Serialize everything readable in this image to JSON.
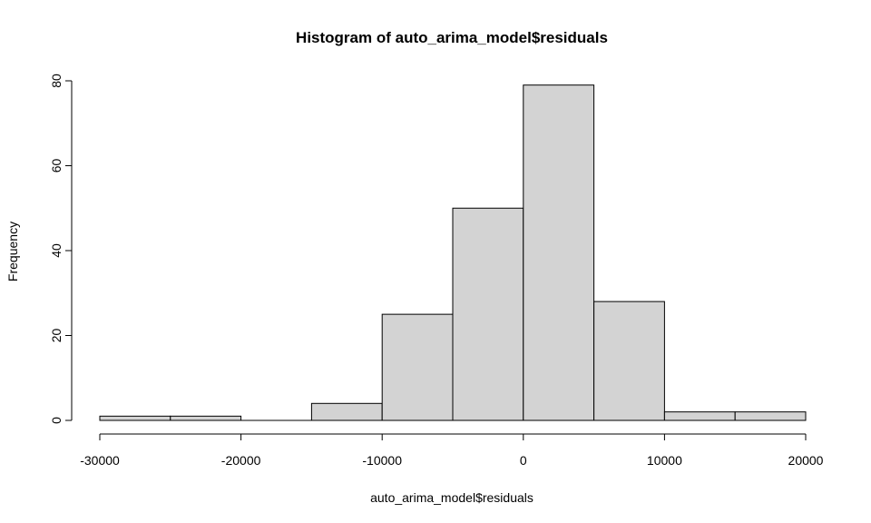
{
  "chart_data": {
    "type": "bar",
    "subtype": "histogram",
    "title": "Histogram of auto_arima_model$residuals",
    "xlabel": "auto_arima_model$residuals",
    "ylabel": "Frequency",
    "bins": [
      {
        "x0": -30000,
        "x1": -25000,
        "count": 1
      },
      {
        "x0": -25000,
        "x1": -20000,
        "count": 1
      },
      {
        "x0": -20000,
        "x1": -15000,
        "count": 0
      },
      {
        "x0": -15000,
        "x1": -10000,
        "count": 4
      },
      {
        "x0": -10000,
        "x1": -5000,
        "count": 25
      },
      {
        "x0": -5000,
        "x1": 0,
        "count": 50
      },
      {
        "x0": 0,
        "x1": 5000,
        "count": 79
      },
      {
        "x0": 5000,
        "x1": 10000,
        "count": 28
      },
      {
        "x0": 10000,
        "x1": 15000,
        "count": 2
      },
      {
        "x0": 15000,
        "x1": 20000,
        "count": 2
      }
    ],
    "xlim": [
      -30000,
      20000
    ],
    "ylim": [
      0,
      80
    ],
    "x_ticks": [
      {
        "value": -30000,
        "label": "-30000"
      },
      {
        "value": -20000,
        "label": "-20000"
      },
      {
        "value": -10000,
        "label": "-10000"
      },
      {
        "value": 0,
        "label": "0"
      },
      {
        "value": 10000,
        "label": "10000"
      },
      {
        "value": 20000,
        "label": "20000"
      }
    ],
    "y_ticks": [
      {
        "value": 0,
        "label": "0"
      },
      {
        "value": 20,
        "label": "20"
      },
      {
        "value": 40,
        "label": "40"
      },
      {
        "value": 60,
        "label": "60"
      },
      {
        "value": 80,
        "label": "80"
      }
    ],
    "grid": false,
    "bar_fill": "#d3d3d3",
    "bar_stroke": "#000000"
  }
}
